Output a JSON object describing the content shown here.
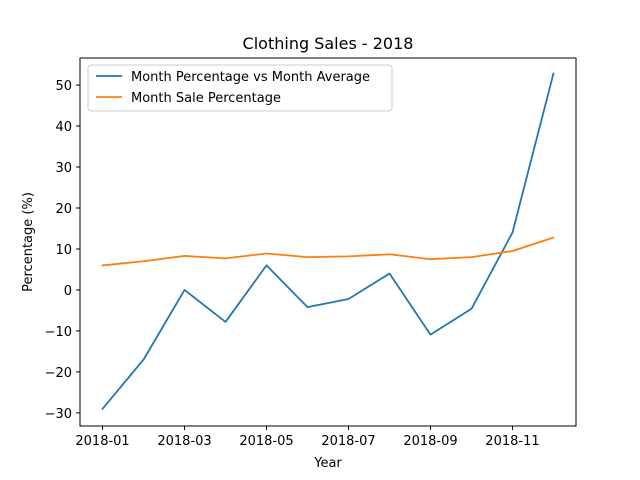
{
  "chart_data": {
    "type": "line",
    "title": "Clothing Sales - 2018",
    "xlabel": "Year",
    "ylabel": "Percentage (%)",
    "x": [
      "2018-01",
      "2018-02",
      "2018-03",
      "2018-04",
      "2018-05",
      "2018-06",
      "2018-07",
      "2018-08",
      "2018-09",
      "2018-10",
      "2018-11",
      "2018-12"
    ],
    "x_ticks": [
      "2018-01",
      "2018-03",
      "2018-05",
      "2018-07",
      "2018-09",
      "2018-11"
    ],
    "y_ticks": [
      -30,
      -20,
      -10,
      0,
      10,
      20,
      30,
      40,
      50
    ],
    "ylim": [
      -33.2,
      56.6
    ],
    "grid": false,
    "legend_position": "upper-left",
    "series": [
      {
        "name": "Month Percentage vs Month Average",
        "color": "#1f77b4",
        "values": [
          -29.0,
          -17.0,
          0.0,
          -7.8,
          6.0,
          -4.2,
          -2.2,
          4.0,
          -10.9,
          -4.6,
          14.0,
          52.8
        ]
      },
      {
        "name": "Month Sale Percentage",
        "color": "#ff7f0e",
        "values": [
          6.0,
          7.0,
          8.3,
          7.7,
          8.9,
          8.0,
          8.2,
          8.7,
          7.5,
          8.0,
          9.5,
          12.8
        ]
      }
    ]
  }
}
